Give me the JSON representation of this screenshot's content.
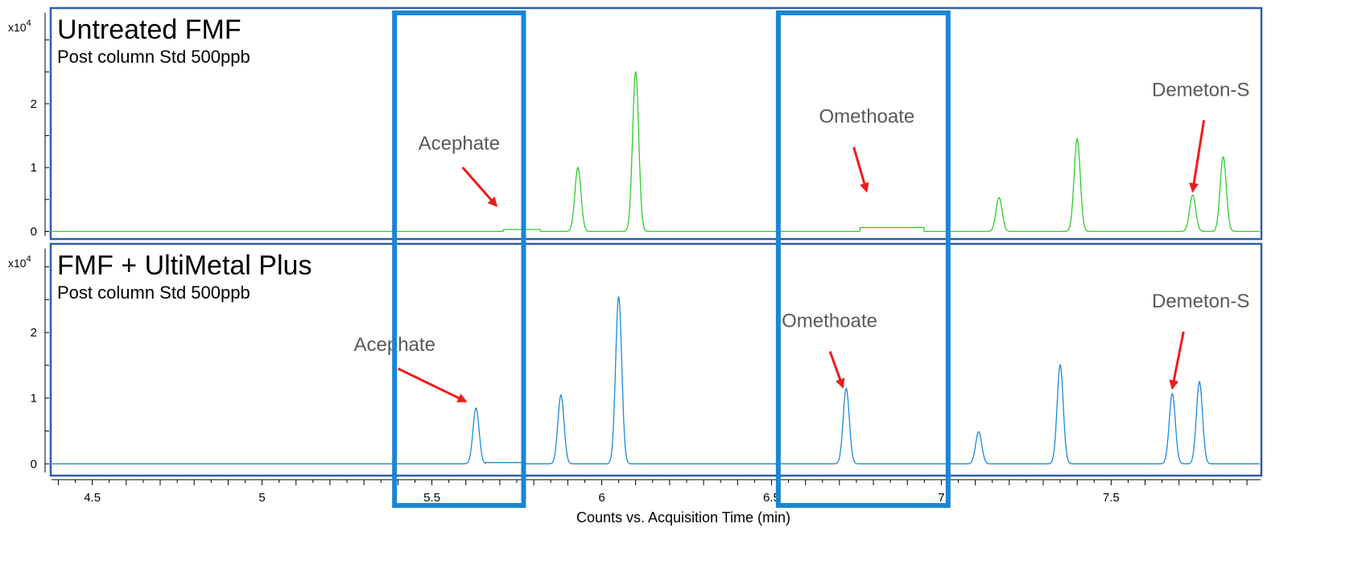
{
  "chart_data": {
    "type": "line",
    "xlabel": "Counts vs. Acquisition Time (min)",
    "xlim": [
      4.38,
      7.94
    ],
    "x_ticks": [
      "4.5",
      "5",
      "5.5",
      "6",
      "6.5",
      "7",
      "7.5"
    ],
    "x_tick_values": [
      4.5,
      5,
      5.5,
      6,
      6.5,
      7,
      7.5
    ],
    "highlight_ranges": [
      [
        5.39,
        5.77
      ],
      [
        6.52,
        7.02
      ]
    ],
    "panels": [
      {
        "title": "Untreated FMF",
        "subtitle": "Post column Std 500ppb",
        "y_multiplier": "x10",
        "y_multiplier_exp": "4",
        "y_ticks": [
          "0",
          "1",
          "2"
        ],
        "y_tick_values": [
          0,
          1,
          2
        ],
        "ylim": [
          -0.12,
          3.5
        ],
        "line_color": "#2ecc2e",
        "series": {
          "baseline": 0.0,
          "peaks": [
            {
              "x": 5.93,
              "y": 1.0
            },
            {
              "x": 6.1,
              "y": 2.5
            },
            {
              "x": 7.17,
              "y": 0.53
            },
            {
              "x": 7.4,
              "y": 1.45
            },
            {
              "x": 7.74,
              "y": 0.57
            },
            {
              "x": 7.83,
              "y": 1.17
            }
          ],
          "plateaus": [
            {
              "x0": 5.71,
              "x1": 5.82,
              "y": 0.03
            },
            {
              "x0": 6.76,
              "x1": 6.95,
              "y": 0.06
            }
          ]
        },
        "annotations": [
          {
            "label": "Acephate",
            "x": 5.46,
            "y": 1.28,
            "arrow_to": {
              "x": 5.69,
              "y": 0.4
            }
          },
          {
            "label": "Omethoate",
            "x": 6.64,
            "y": 1.7,
            "arrow_to": {
              "x": 6.78,
              "y": 0.63
            }
          },
          {
            "label": "Demeton-S",
            "x": 7.62,
            "y": 2.12,
            "arrow_to": {
              "x": 7.74,
              "y": 0.63
            }
          }
        ]
      },
      {
        "title": "FMF + UltiMetal Plus",
        "subtitle": "Post column Std 500ppb",
        "y_multiplier": "x10",
        "y_multiplier_exp": "4",
        "y_ticks": [
          "0",
          "1",
          "2"
        ],
        "y_tick_values": [
          0,
          1,
          2
        ],
        "ylim": [
          -0.18,
          3.35
        ],
        "line_color": "#1c8ad8",
        "series": {
          "baseline": 0.0,
          "peaks": [
            {
              "x": 5.63,
              "y": 0.85
            },
            {
              "x": 5.88,
              "y": 1.05
            },
            {
              "x": 6.05,
              "y": 2.55
            },
            {
              "x": 6.72,
              "y": 1.15
            },
            {
              "x": 7.11,
              "y": 0.49
            },
            {
              "x": 7.35,
              "y": 1.51
            },
            {
              "x": 7.68,
              "y": 1.07
            },
            {
              "x": 7.76,
              "y": 1.25
            }
          ],
          "plateaus": [
            {
              "x0": 5.66,
              "x1": 5.77,
              "y": 0.02
            }
          ]
        },
        "annotations": [
          {
            "label": "Acephate",
            "x": 5.27,
            "y": 1.72,
            "arrow_to": {
              "x": 5.6,
              "y": 0.95
            }
          },
          {
            "label": "Omethoate",
            "x": 6.53,
            "y": 2.08,
            "arrow_to": {
              "x": 6.71,
              "y": 1.17
            }
          },
          {
            "label": "Demeton-S",
            "x": 7.62,
            "y": 2.38,
            "arrow_to": {
              "x": 7.68,
              "y": 1.15
            }
          }
        ]
      }
    ]
  }
}
